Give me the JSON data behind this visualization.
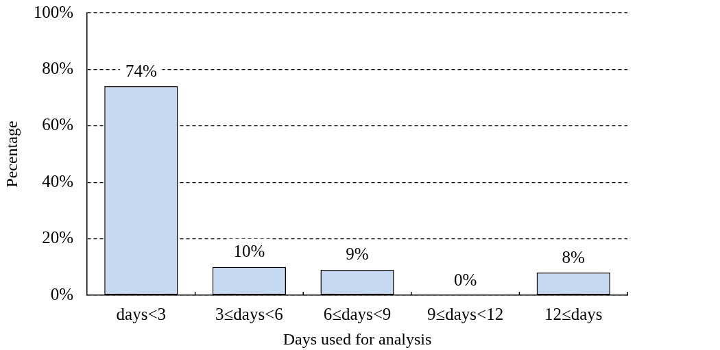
{
  "chart_data": {
    "type": "bar",
    "xlabel": "Days used for analysis",
    "ylabel": "Pecentage",
    "categories": [
      "days<3",
      "3≤days<6",
      "6≤days<9",
      "9≤days<12",
      "12≤days"
    ],
    "values": [
      74,
      10,
      9,
      0,
      8
    ],
    "color": "#c6d9f0",
    "value_labels": [
      "74%",
      "10%",
      "9%",
      "0%",
      "8%"
    ],
    "ylim": [
      0,
      100
    ],
    "yticks": [
      {
        "value": 0,
        "label": "0%"
      },
      {
        "value": 20,
        "label": "20%"
      },
      {
        "value": 40,
        "label": "40%"
      },
      {
        "value": 60,
        "label": "60%"
      },
      {
        "value": 80,
        "label": "80%"
      },
      {
        "value": 100,
        "label": "100%"
      }
    ],
    "grid": "y",
    "legend": false
  }
}
